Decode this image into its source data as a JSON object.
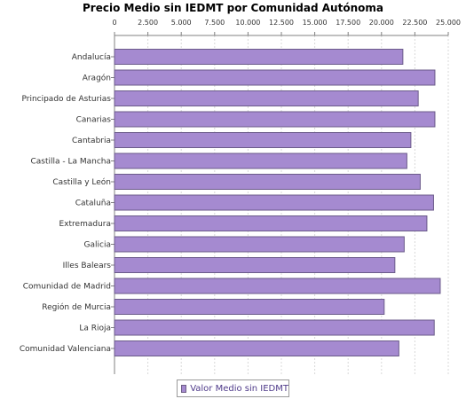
{
  "chart_data": {
    "type": "bar",
    "orientation": "horizontal",
    "title": "Precio Medio sin IEDMT por Comunidad Autónoma",
    "xlabel": "",
    "ylabel": "",
    "xlim": [
      0,
      25000
    ],
    "tick_values": [
      0,
      2500,
      5000,
      7500,
      10000,
      12500,
      15000,
      17500,
      20000,
      22500,
      25000
    ],
    "tick_labels": [
      "0",
      "2.500",
      "5.000",
      "7.500",
      "10.000",
      "12.500",
      "15.000",
      "17.500",
      "20.000",
      "22.500",
      "25.000"
    ],
    "categories": [
      "Andalucía",
      "Aragón",
      "Principado de Asturias",
      "Canarias",
      "Cantabria",
      "Castilla - La Mancha",
      "Castilla y León",
      "Cataluña",
      "Extremadura",
      "Galicia",
      "Illes Balears",
      "Comunidad de Madrid",
      "Región de Murcia",
      "La Rioja",
      "Comunidad Valenciana"
    ],
    "series": [
      {
        "name": "Valor Medio sin IEDMT",
        "color": "#a58ad0",
        "values": [
          21600,
          24000,
          22750,
          24000,
          22200,
          21900,
          22900,
          23900,
          23400,
          21700,
          21000,
          24400,
          20200,
          23950,
          21300
        ]
      }
    ],
    "grid": true,
    "legend_position": "bottom-center"
  }
}
